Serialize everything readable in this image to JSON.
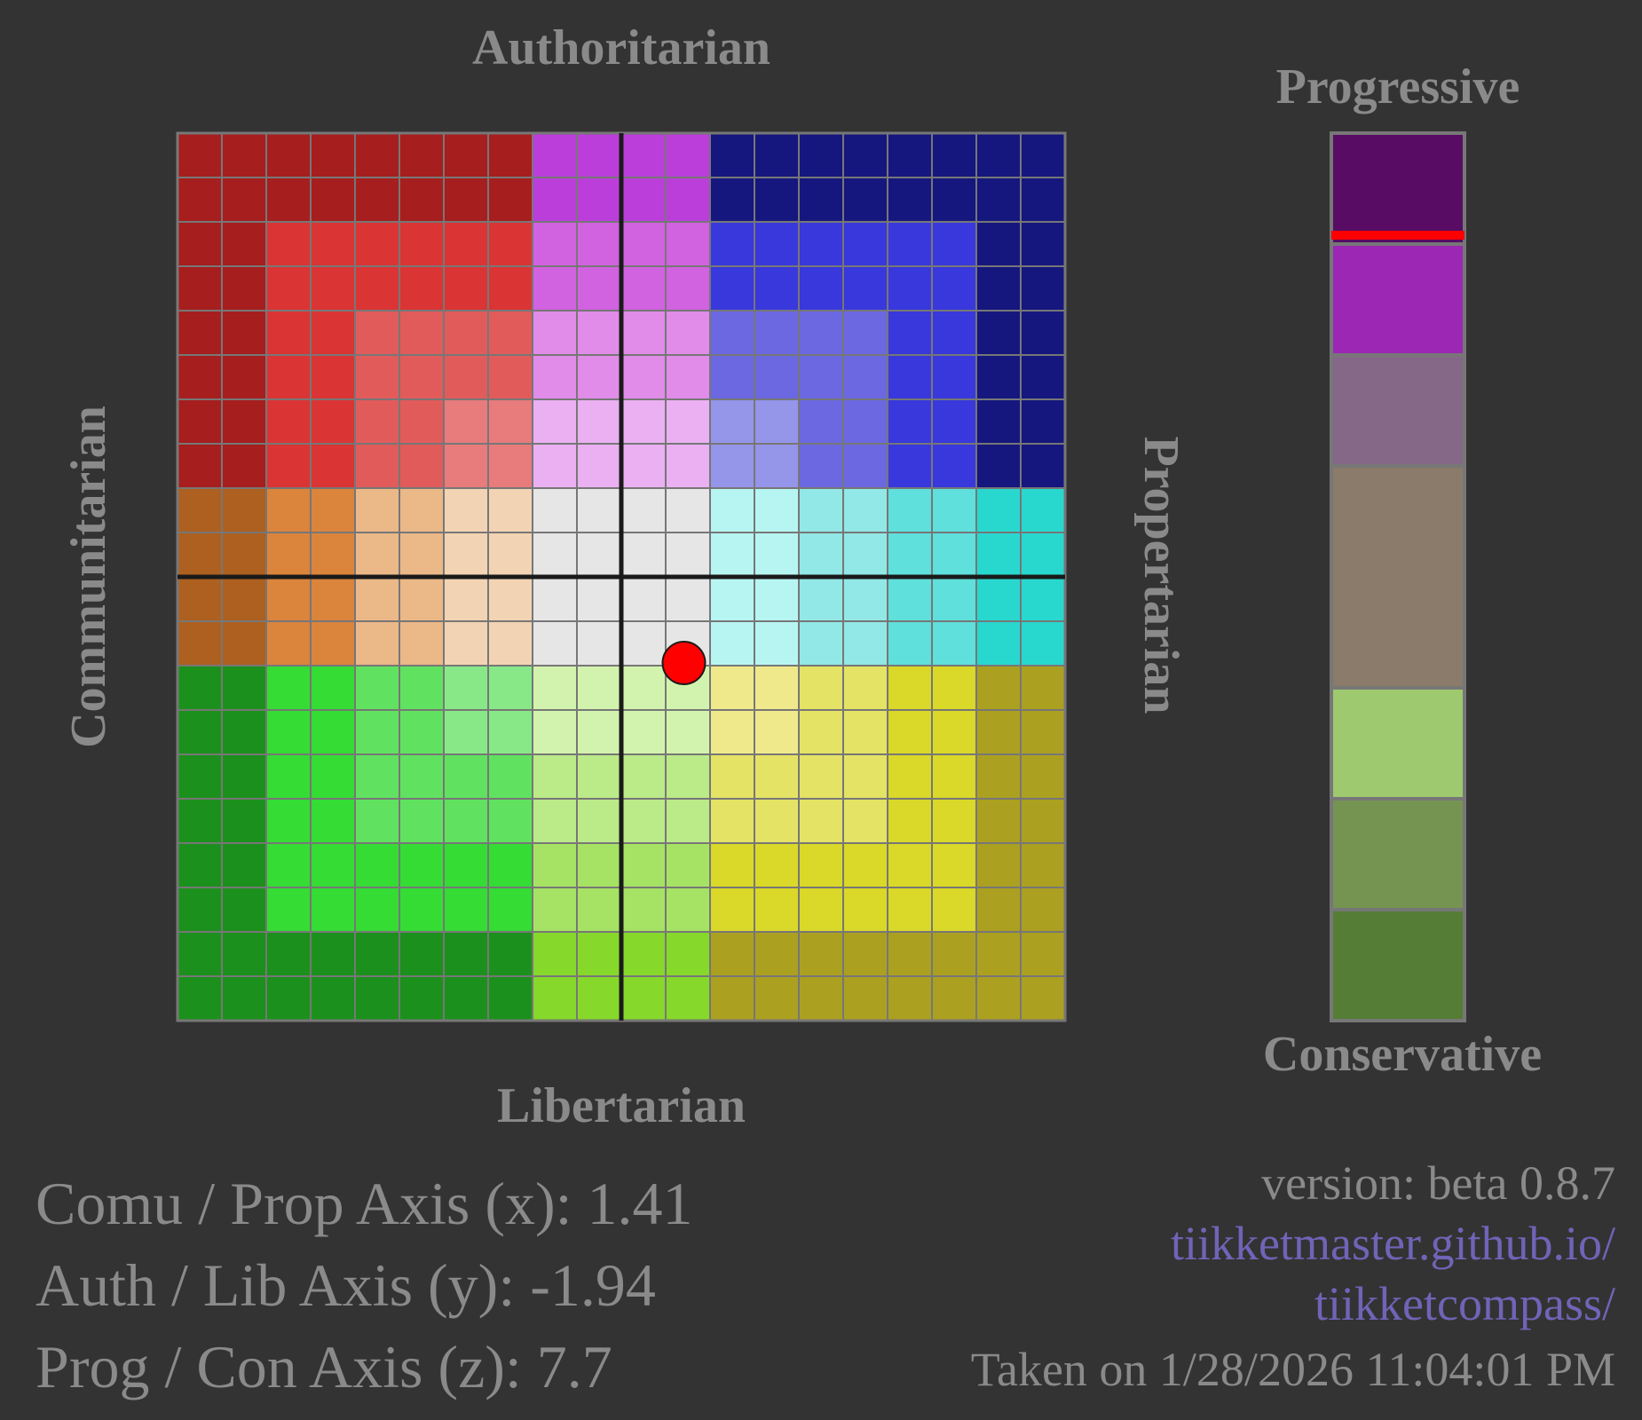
{
  "axes": {
    "top": "Authoritarian",
    "bottom": "Libertarian",
    "left": "Communitarian",
    "right": "Propertarian",
    "z_top": "Progressive",
    "z_bottom": "Conservative"
  },
  "results": {
    "x_label": "Comu / Prop Axis (x): 1.41",
    "y_label": "Auth / Lib Axis (y): -1.94",
    "z_label": "Prog / Con Axis (z): 7.7"
  },
  "meta": {
    "version": "version: beta 0.8.7",
    "link_line1": "tiikketmaster.github.io/",
    "link_line2": "tiikketcompass/",
    "taken": "Taken on 1/28/2026 11:04:01 PM"
  },
  "chart_data": {
    "type": "scatter",
    "x": [
      1.41
    ],
    "y": [
      -1.94
    ],
    "z": [
      7.7
    ],
    "xlim": [
      -10,
      10
    ],
    "ylim": [
      -10,
      10
    ],
    "zlim": [
      -10,
      10
    ],
    "point_color": "#ff0000",
    "grid": true,
    "grid_color": "#777777",
    "axis_color": "#1a1a1a",
    "zones": {
      "dark_red": "#a61e1e",
      "red": "#db3434",
      "salmon": "#e25b5b",
      "light_salmon": "#e87b7b",
      "purple": "#bb3edb",
      "mid_purple": "#d162e0",
      "light_purple": "#e08ce8",
      "pale_purple": "#eab0f2",
      "navy": "#15177e",
      "blue": "#3838dc",
      "mid_blue": "#6b68e2",
      "light_blue": "#9595ea",
      "brown": "#ad601f",
      "orange": "#db843c",
      "peach": "#ebb888",
      "pale_peach": "#f2d3b3",
      "grey": "#e6e6e6",
      "pale_cyan": "#b7f5f2",
      "light_cyan": "#92e8e6",
      "mid_cyan": "#5fe0dc",
      "cyan": "#28d8cf",
      "dark_green": "#1c901c",
      "green": "#34dc34",
      "mid_green": "#60e260",
      "light_green": "#88e888",
      "pale_lime": "#d2f3ad",
      "light_lime": "#bbea88",
      "mid_lime": "#a6e364",
      "lime": "#86d92a",
      "pale_yellow": "#efe98c",
      "light_yellow": "#e5e365",
      "yellow": "#dad828",
      "olive": "#aca020"
    },
    "z_scale": [
      {
        "range": [
          7.5,
          10
        ],
        "color": "#580c64"
      },
      {
        "range": [
          5,
          7.5
        ],
        "color": "#9b27b4"
      },
      {
        "range": [
          2.5,
          5
        ],
        "color": "#856788"
      },
      {
        "range": [
          -2.5,
          2.5
        ],
        "color": "#8b7b6a"
      },
      {
        "range": [
          -5,
          -2.5
        ],
        "color": "#9ec96f"
      },
      {
        "range": [
          -7.5,
          -5
        ],
        "color": "#759451"
      },
      {
        "range": [
          -10,
          -7.5
        ],
        "color": "#557d35"
      }
    ],
    "z_marker_color": "#ff0000"
  }
}
